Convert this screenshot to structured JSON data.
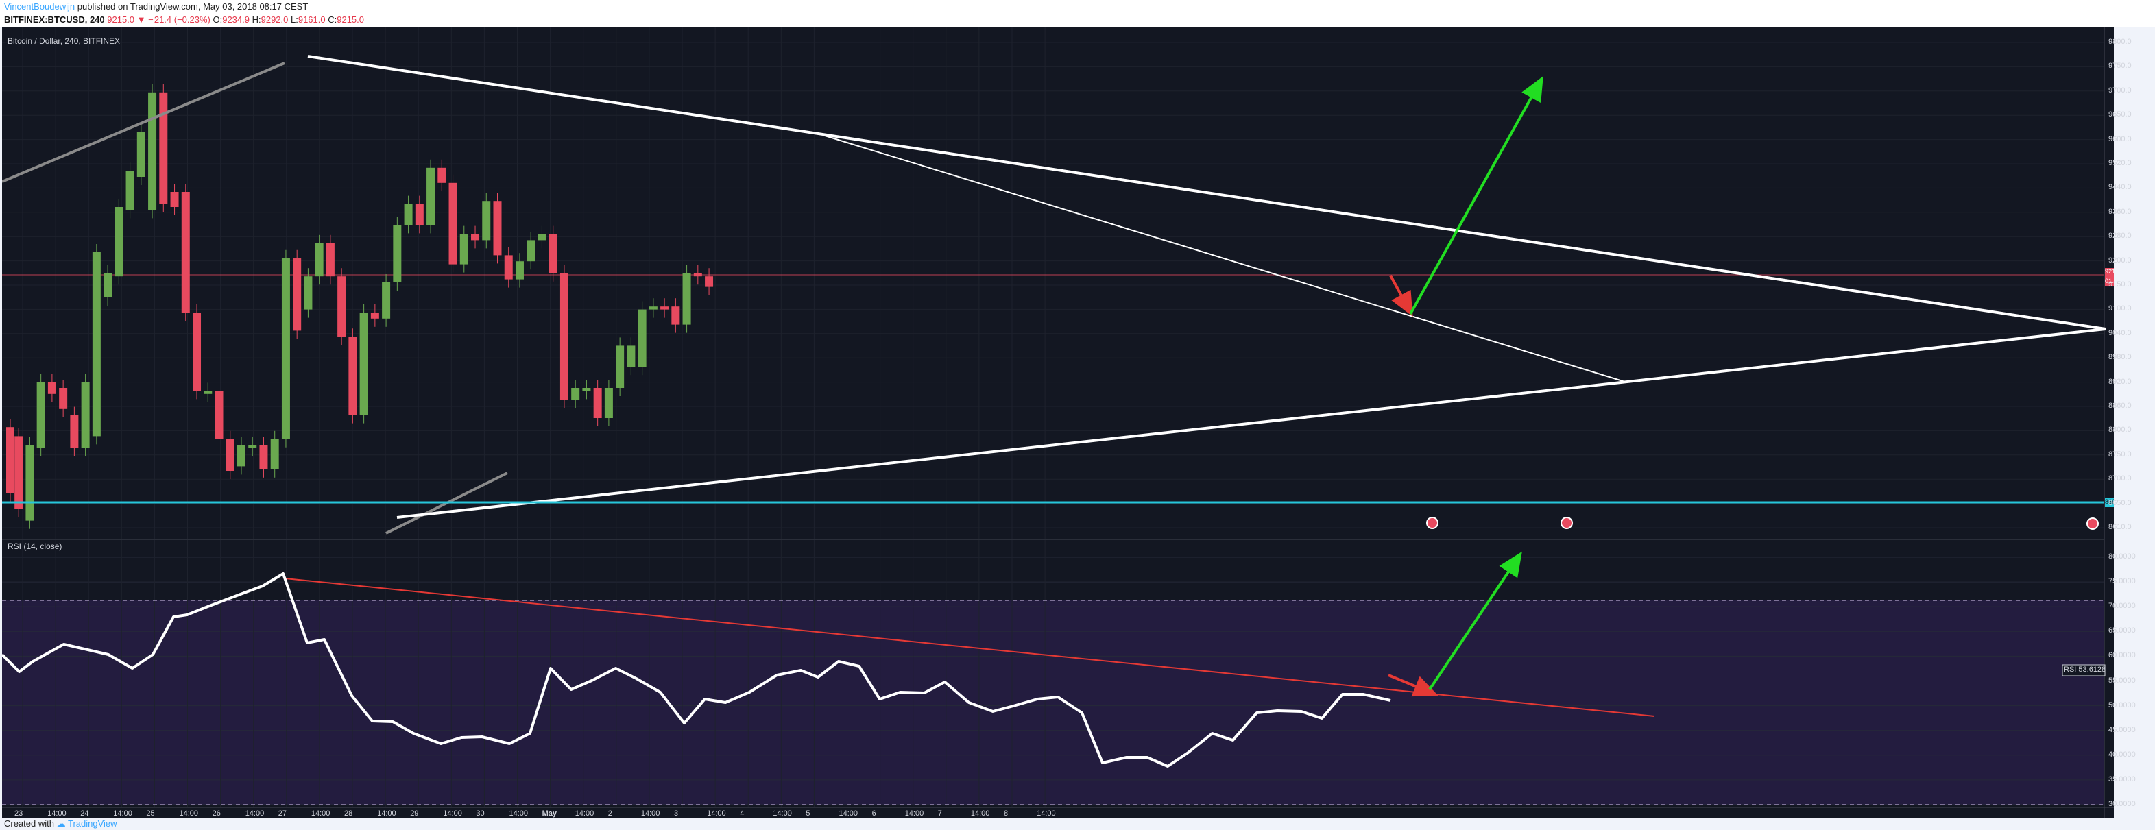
{
  "header": {
    "author": "VincentBoudewijn",
    "published_text": "published on TradingView.com, May 03, 2018 08:17 CEST",
    "symbol": "BITFINEX:BTCUSD, 240",
    "last": "9215.0",
    "change_text": "− 21.4 (−0.23%)",
    "o_label": "O:",
    "o_value": "9234.9",
    "h_label": "H:",
    "h_value": "9292.0",
    "l_label": "L:",
    "l_value": "9161.0",
    "c_label": "C:",
    "c_value": "9215.0"
  },
  "chart": {
    "title": "Bitcoin / Dollar, 240, BITFINEX",
    "rsi_title": "RSI (14, close)",
    "price_badge": "9215.0",
    "countdown_badge": "01:42:10",
    "support_badge": "8665.1",
    "rsi_badge_label": "RSI",
    "rsi_badge_value": "53.6128",
    "colors": {
      "background": "#131722",
      "up": "#6aa84f",
      "down": "#e84a5f",
      "trendline": "#ffffff",
      "support": "#26c6da",
      "rsi_trend": "#e53935",
      "arrow_up": "#22dd22",
      "arrow_down": "#e53935",
      "rsi_band": "#2a1f4a"
    },
    "price_axis": [
      "9800.0",
      "9750.0",
      "9700.0",
      "9650.0",
      "9600.0",
      "9520.0",
      "9440.0",
      "9360.0",
      "9280.0",
      "9200.0",
      "9150.0",
      "9100.0",
      "9040.0",
      "8980.0",
      "8920.0",
      "8860.0",
      "8800.0",
      "8750.0",
      "8700.0",
      "8650.0",
      "8610.0"
    ],
    "rsi_axis": [
      "80.0000",
      "75.0000",
      "70.0000",
      "65.0000",
      "60.0000",
      "55.0000",
      "50.0000",
      "45.0000",
      "40.0000",
      "35.0000",
      "30.0000"
    ],
    "time_axis": [
      "23",
      "14:00",
      "24",
      "14:00",
      "25",
      "14:00",
      "26",
      "14:00",
      "27",
      "14:00",
      "28",
      "14:00",
      "29",
      "14:00",
      "30",
      "14:00",
      "May",
      "14:00",
      "2",
      "14:00",
      "3",
      "14:00",
      "4",
      "14:00",
      "5",
      "14:00",
      "6",
      "14:00",
      "7",
      "14:00",
      "8",
      "14:00"
    ]
  },
  "footer": {
    "created_with": "Created with",
    "brand": "TradingView"
  }
}
